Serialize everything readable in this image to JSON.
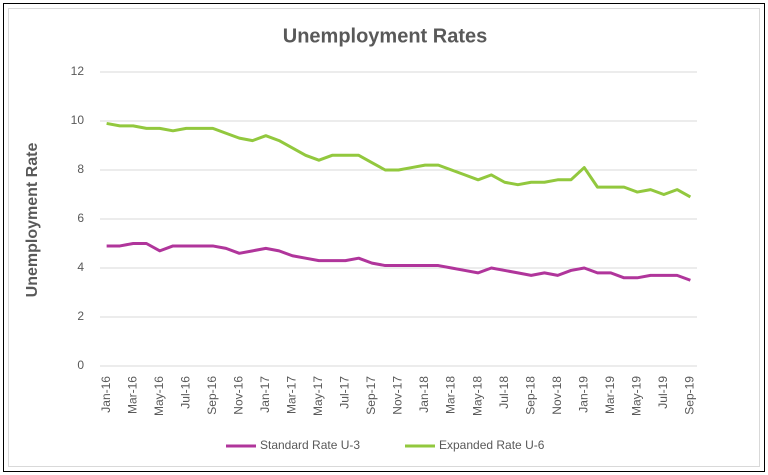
{
  "chart_data": {
    "type": "line",
    "title": "Unemployment Rates",
    "y_label": "Unemployment Rate",
    "categories": [
      "Jan-16",
      null,
      "Mar-16",
      null,
      "May-16",
      null,
      "Jul-16",
      null,
      "Sep-16",
      null,
      "Nov-16",
      null,
      "Jan-17",
      null,
      "Mar-17",
      null,
      "May-17",
      null,
      "Jul-17",
      null,
      "Sep-17",
      null,
      "Nov-17",
      null,
      "Jan-18",
      null,
      "Mar-18",
      null,
      "May-18",
      null,
      "Jul-18",
      null,
      "Sep-18",
      null,
      "Nov-18",
      null,
      "Jan-19",
      null,
      "Mar-19",
      null,
      "May-19",
      null,
      "Jul-19",
      null,
      "Sep-19"
    ],
    "series": [
      {
        "name": "Standard Rate U-3",
        "color": "#b0359b",
        "values": [
          4.9,
          4.9,
          5.0,
          5.0,
          4.7,
          4.9,
          4.9,
          4.9,
          4.9,
          4.8,
          4.6,
          4.7,
          4.8,
          4.7,
          4.5,
          4.4,
          4.3,
          4.3,
          4.3,
          4.4,
          4.2,
          4.1,
          4.1,
          4.1,
          4.1,
          4.1,
          4.0,
          3.9,
          3.8,
          4.0,
          3.9,
          3.8,
          3.7,
          3.8,
          3.7,
          3.9,
          4.0,
          3.8,
          3.8,
          3.6,
          3.6,
          3.7,
          3.7,
          3.7,
          3.5
        ]
      },
      {
        "name": "Expanded Rate U-6",
        "color": "#92c83e",
        "values": [
          9.9,
          9.8,
          9.8,
          9.7,
          9.7,
          9.6,
          9.7,
          9.7,
          9.7,
          9.5,
          9.3,
          9.2,
          9.4,
          9.2,
          8.9,
          8.6,
          8.4,
          8.6,
          8.6,
          8.6,
          8.3,
          8.0,
          8.0,
          8.1,
          8.2,
          8.2,
          8.0,
          7.8,
          7.6,
          7.8,
          7.5,
          7.4,
          7.5,
          7.5,
          7.6,
          7.6,
          8.1,
          7.3,
          7.3,
          7.3,
          7.1,
          7.2,
          7.0,
          7.2,
          6.9
        ]
      }
    ],
    "ylim": [
      0,
      12
    ],
    "yticks": [
      0,
      2,
      4,
      6,
      8,
      10,
      12
    ],
    "grid": true,
    "legend": "bottom"
  }
}
